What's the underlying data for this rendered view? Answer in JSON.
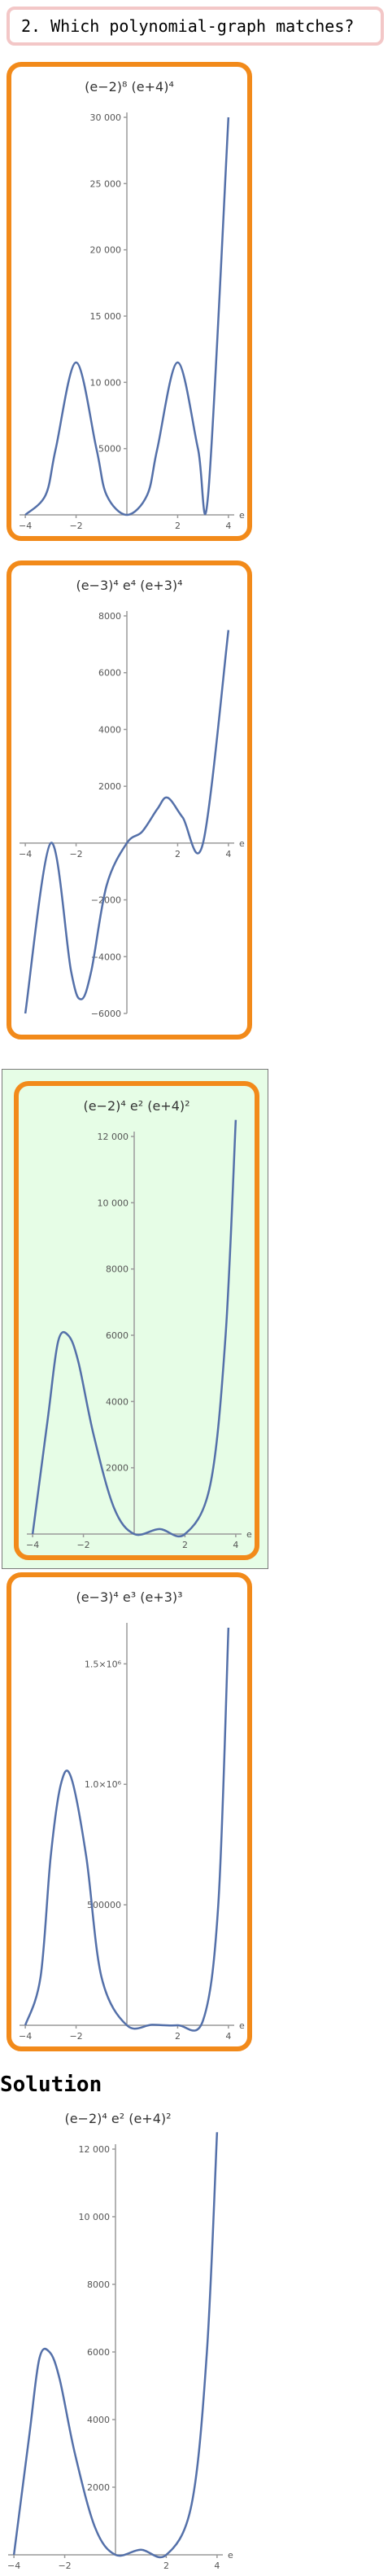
{
  "question": {
    "text": "2. Which polynomial-graph matches?"
  },
  "solution_label": "Solution",
  "chart_data": [
    {
      "id": "option-a",
      "type": "line",
      "title": "(e−2)⁸ (e+4)⁴",
      "xlabel": "e",
      "xlim": [
        -4.1,
        4.1
      ],
      "ylim": [
        0,
        30000
      ],
      "xticks": [
        -4,
        -2,
        2,
        4
      ],
      "yticks": [
        5000,
        10000,
        15000,
        20000,
        25000,
        30000
      ],
      "ytick_labels": [
        "5000",
        "10 000",
        "15 000",
        "20 000",
        "25 000",
        "30 000"
      ],
      "series": [
        {
          "x": [
            -4,
            -3.2,
            -2.8,
            -2.0,
            -1.2,
            -0.8,
            0,
            0.8,
            1.2,
            2.0,
            2.8,
            3.2,
            4
          ],
          "y": [
            0,
            1500,
            5000,
            11500,
            5000,
            1500,
            0,
            1500,
            5000,
            11500,
            5000,
            1500,
            30000
          ]
        }
      ]
    },
    {
      "id": "option-b",
      "type": "line",
      "title": "(e−3)⁴ e⁴ (e+3)⁴",
      "xlabel": "e",
      "xlim": [
        -4.1,
        4.1
      ],
      "ylim": [
        -6000,
        8000
      ],
      "xticks": [
        -4,
        -2,
        2,
        4
      ],
      "yticks": [
        -6000,
        -4000,
        -2000,
        2000,
        4000,
        6000,
        8000
      ],
      "ytick_labels": [
        "−6000",
        "−4000",
        "−2000",
        "2000",
        "4000",
        "6000",
        "8000"
      ],
      "series": [
        {
          "x": [
            -4,
            -3.0,
            -2.2,
            -1.8,
            -1.4,
            -0.8,
            0,
            0.6,
            1.2,
            1.6,
            2.2,
            3.0,
            4
          ],
          "y": [
            -6000,
            0,
            -4500,
            -5500,
            -4500,
            -1500,
            0,
            400,
            1200,
            1600,
            900,
            0,
            7500
          ]
        }
      ]
    },
    {
      "id": "option-c",
      "type": "line",
      "title": "(e−2)⁴ e² (e+4)²",
      "xlabel": "e",
      "xlim": [
        -4.1,
        4.1
      ],
      "ylim": [
        0,
        12000
      ],
      "xticks": [
        -4,
        -2,
        2,
        4
      ],
      "yticks": [
        2000,
        4000,
        6000,
        8000,
        10000,
        12000
      ],
      "ytick_labels": [
        "2000",
        "4000",
        "6000",
        "8000",
        "10 000",
        "12 000"
      ],
      "series": [
        {
          "x": [
            -4,
            -3.4,
            -3.0,
            -2.6,
            -2.2,
            -1.6,
            -0.8,
            0,
            1.0,
            2.0,
            3.0,
            3.6,
            4
          ],
          "y": [
            0,
            3500,
            5800,
            6000,
            5200,
            3000,
            800,
            0,
            150,
            0,
            1500,
            6000,
            12500
          ]
        }
      ]
    },
    {
      "id": "option-d",
      "type": "line",
      "title": "(e−3)⁴ e³ (e+3)³",
      "xlabel": "e",
      "xlim": [
        -4.1,
        4.1
      ],
      "ylim": [
        0,
        1650000
      ],
      "xticks": [
        -4,
        -2,
        2,
        4
      ],
      "yticks": [
        500000,
        1000000,
        1500000
      ],
      "ytick_labels": [
        "500000",
        "1.0×10⁶",
        "1.5×10⁶"
      ],
      "series": [
        {
          "x": [
            -4,
            -3.4,
            -3.0,
            -2.6,
            -2.2,
            -1.6,
            -1.0,
            0,
            1.0,
            2.0,
            3.0,
            3.6,
            4
          ],
          "y": [
            0,
            200000,
            700000,
            1000000,
            1030000,
            700000,
            200000,
            0,
            2000,
            0,
            20000,
            500000,
            1650000
          ]
        }
      ]
    },
    {
      "id": "solution",
      "type": "line",
      "title": "(e−2)⁴ e² (e+4)²",
      "xlabel": "e",
      "xlim": [
        -4.1,
        4.1
      ],
      "ylim": [
        0,
        12000
      ],
      "xticks": [
        -4,
        -2,
        2,
        4
      ],
      "yticks": [
        2000,
        4000,
        6000,
        8000,
        10000,
        12000
      ],
      "ytick_labels": [
        "2000",
        "4000",
        "6000",
        "8000",
        "10 000",
        "12 000"
      ],
      "series": [
        {
          "x": [
            -4,
            -3.4,
            -3.0,
            -2.6,
            -2.2,
            -1.6,
            -0.8,
            0,
            1.0,
            2.0,
            3.0,
            3.6,
            4
          ],
          "y": [
            0,
            3500,
            5800,
            6000,
            5200,
            3000,
            800,
            0,
            150,
            0,
            1500,
            6000,
            12500
          ]
        }
      ]
    }
  ],
  "colors": {
    "curve": "#5470a9",
    "card_border": "#f28a1a",
    "selected_bg": "#e6fde6",
    "question_border": "#f3c7c7"
  }
}
